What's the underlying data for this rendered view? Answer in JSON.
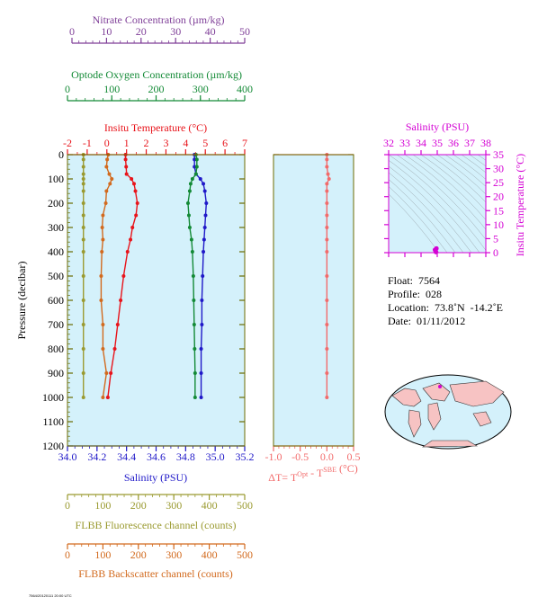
{
  "colors": {
    "nitrate": "#7f3f98",
    "oxygen": "#138a36",
    "temperature": "#e8141b",
    "salinity": "#1f18c8",
    "fluorescence": "#9a9a30",
    "backscatter": "#d26a1e",
    "deltaT": "#f26b6b",
    "ts": "#d400d4",
    "plotbg": "#d4f1fb",
    "frame": "#6b6b00",
    "land": "#f7c3c3"
  },
  "axes": {
    "nitrate": {
      "label": "Nitrate Concentration (µm/kg)",
      "ticks": [
        "0",
        "10",
        "20",
        "30",
        "40",
        "50"
      ],
      "range": [
        0,
        50
      ]
    },
    "oxygen": {
      "label": "Optode Oxygen Concentration (µm/kg)",
      "ticks": [
        "0",
        "100",
        "200",
        "300",
        "400"
      ],
      "range": [
        0,
        400
      ]
    },
    "temperature": {
      "label": "Insitu Temperature (°C)",
      "ticks": [
        "-2",
        "-1",
        "0",
        "1",
        "2",
        "3",
        "4",
        "5",
        "6",
        "7"
      ],
      "range": [
        -2,
        7
      ]
    },
    "pressure": {
      "label": "Pressure (decibar)",
      "ticks": [
        "0",
        "100",
        "200",
        "300",
        "400",
        "500",
        "600",
        "700",
        "800",
        "900",
        "1000",
        "1100",
        "1200"
      ],
      "range": [
        0,
        1200
      ]
    },
    "salinity": {
      "label": "Salinity (PSU)",
      "ticks": [
        "34.0",
        "34.2",
        "34.4",
        "34.6",
        "34.8",
        "35.0",
        "35.2"
      ],
      "range": [
        34.0,
        35.2
      ]
    },
    "fluorescence": {
      "label": "FLBB Fluorescence channel (counts)",
      "ticks": [
        "0",
        "100",
        "200",
        "300",
        "400",
        "500"
      ],
      "range": [
        0,
        500
      ]
    },
    "backscatter": {
      "label": "FLBB Backscatter channel (counts)",
      "ticks": [
        "0",
        "100",
        "200",
        "300",
        "400",
        "500"
      ],
      "range": [
        0,
        500
      ]
    },
    "deltaT": {
      "label_prefix": "ΔT= T",
      "label_sup1": "Opt",
      "label_mid": " - T",
      "label_sup2": "SBE",
      "label_suffix": " (°C)",
      "ticks": [
        "-1.0",
        "-0.5",
        "0.0",
        "0.5"
      ],
      "range": [
        -1.0,
        0.5
      ]
    },
    "ts_salinity": {
      "label": "Salinity (PSU)",
      "ticks": [
        "32",
        "33",
        "34",
        "35",
        "36",
        "37",
        "38"
      ],
      "range": [
        32,
        38
      ]
    },
    "ts_temperature": {
      "label": "Insitu Temperature (°C)",
      "ticks": [
        "0",
        "5",
        "10",
        "15",
        "20",
        "25",
        "30",
        "35"
      ],
      "range": [
        0,
        35
      ]
    }
  },
  "chart_data": {
    "type": "line",
    "pressure": [
      0,
      20,
      50,
      80,
      100,
      120,
      150,
      200,
      250,
      300,
      350,
      400,
      500,
      600,
      700,
      800,
      900,
      1000
    ],
    "series": [
      {
        "key": "temperature",
        "values": [
          0.95,
          0.95,
          0.98,
          1.0,
          1.25,
          1.38,
          1.45,
          1.55,
          1.48,
          1.3,
          1.2,
          1.05,
          0.85,
          0.7,
          0.55,
          0.4,
          0.2,
          0.05
        ]
      },
      {
        "key": "salinity",
        "values": [
          34.86,
          34.86,
          34.86,
          34.87,
          34.9,
          34.92,
          34.93,
          34.94,
          34.935,
          34.93,
          34.925,
          34.92,
          34.915,
          34.91,
          34.91,
          34.905,
          34.905,
          34.905
        ]
      },
      {
        "key": "oxygen",
        "values": [
          290,
          292,
          292,
          290,
          282,
          278,
          276,
          272,
          274,
          276,
          280,
          282,
          284,
          285,
          286,
          287,
          288,
          288
        ]
      },
      {
        "key": "fluorescence",
        "values": [
          45,
          45,
          45,
          45,
          45,
          45,
          45,
          45,
          45,
          45,
          45,
          45,
          45,
          45,
          45,
          45,
          45,
          45
        ]
      },
      {
        "key": "backscatter",
        "values": [
          115,
          112,
          110,
          118,
          125,
          120,
          110,
          108,
          100,
          98,
          100,
          97,
          95,
          95,
          100,
          100,
          110,
          100
        ]
      },
      {
        "key": "deltaT",
        "values": [
          0.0,
          0.0,
          0.0,
          0.02,
          0.04,
          0.0,
          0.0,
          0.0,
          0.0,
          0.0,
          0.0,
          0.0,
          0.0,
          0.0,
          0.0,
          0.0,
          0.0,
          0.0
        ]
      }
    ],
    "ts_points": [
      {
        "salinity": 34.9,
        "temperature": 0.5
      },
      {
        "salinity": 34.95,
        "temperature": 1.5
      },
      {
        "salinity": 34.86,
        "temperature": 1.0
      },
      {
        "salinity": 34.92,
        "temperature": 0.2
      }
    ],
    "grid": false
  },
  "info": {
    "float": "Float:  7564",
    "profile": "Profile:  028",
    "location": "Location:  73.8˚N  -14.2˚E",
    "date": "Date:  01/11/2012"
  },
  "footer": "7564/20120111 20:00 UTC"
}
